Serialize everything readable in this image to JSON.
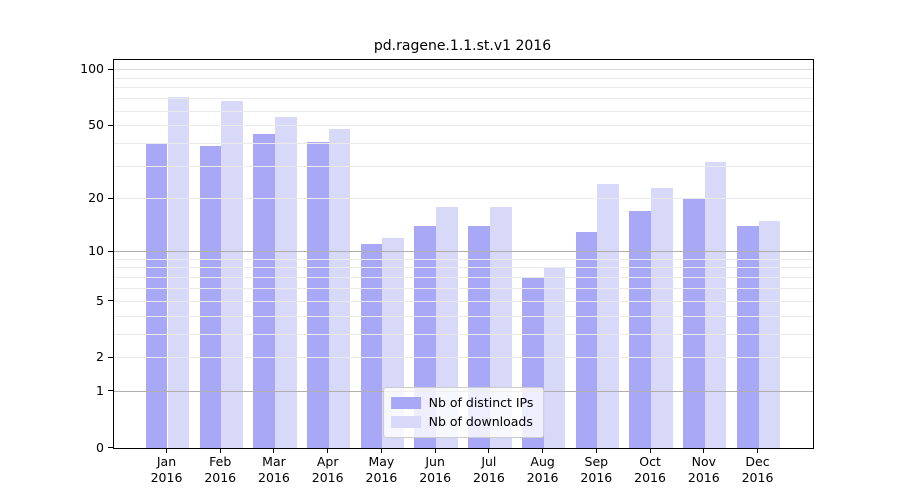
{
  "chart_data": {
    "type": "bar",
    "title": "pd.ragene.1.1.st.v1 2016",
    "categories": [
      "Jan 2016",
      "Feb 2016",
      "Mar 2016",
      "Apr 2016",
      "May 2016",
      "Jun 2016",
      "Jul 2016",
      "Aug 2016",
      "Sep 2016",
      "Oct 2016",
      "Nov 2016",
      "Dec 2016"
    ],
    "series": [
      {
        "name": "Nb of distinct IPs",
        "color": "#a8a8f7",
        "values": [
          40,
          39,
          45,
          41,
          11,
          14,
          14,
          7,
          13,
          17,
          20,
          14
        ]
      },
      {
        "name": "Nb of downloads",
        "color": "#d8d8f8",
        "values": [
          72,
          68,
          56,
          48,
          12,
          18,
          18,
          8,
          24,
          23,
          32,
          15
        ]
      }
    ],
    "xlabel": "",
    "ylabel": "",
    "yscale": "log1p",
    "ylim": [
      0,
      113
    ],
    "y_ticks": [
      100,
      50,
      20,
      10,
      5,
      2,
      1,
      0
    ],
    "grid": {
      "minor": {
        "values": [
          2,
          3,
          4,
          5,
          6,
          7,
          8,
          9,
          20,
          30,
          40,
          50,
          60,
          70,
          80,
          90
        ],
        "color": "#eaeaea"
      },
      "major": {
        "values": [
          1,
          10
        ],
        "color": "#b0b0b0"
      },
      "upper": {
        "values": [
          100
        ],
        "color": "#dedede"
      }
    },
    "legend_position": "lower center"
  }
}
